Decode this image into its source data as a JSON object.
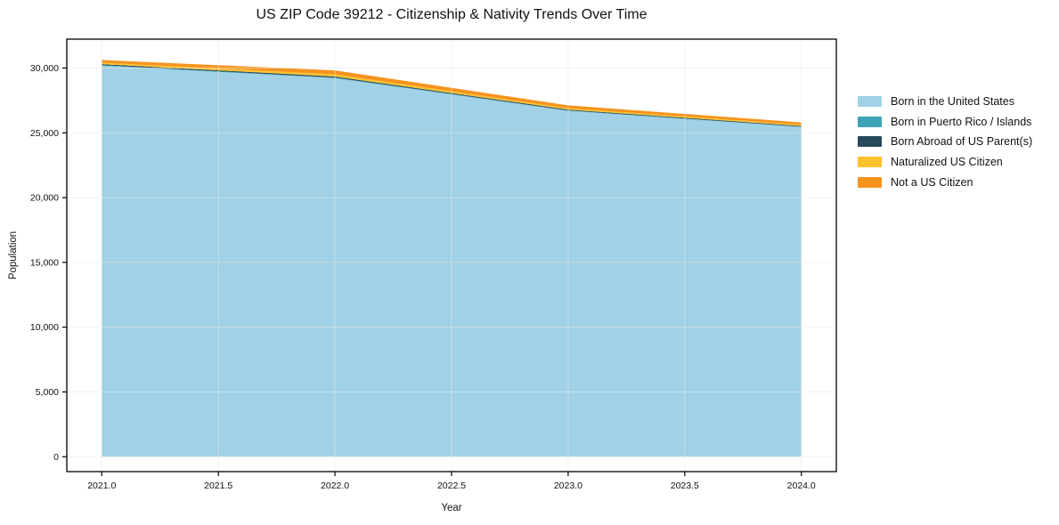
{
  "chart_data": {
    "type": "area",
    "stacked": true,
    "title": "US ZIP Code 39212 - Citizenship & Nativity Trends Over Time",
    "xlabel": "Year",
    "ylabel": "Population",
    "x": [
      2021,
      2022,
      2023,
      2024
    ],
    "series": [
      {
        "name": "Born in the United States",
        "color": "#a0d1e6",
        "values": [
          30190,
          29220,
          26700,
          25450
        ]
      },
      {
        "name": "Born in Puerto Rico / Islands",
        "color": "#3da4b8",
        "values": [
          35,
          40,
          30,
          25
        ]
      },
      {
        "name": "Born Abroad of US Parent(s)",
        "color": "#25495a",
        "values": [
          75,
          85,
          60,
          55
        ]
      },
      {
        "name": "Naturalized US Citizen",
        "color": "#fcc22d",
        "values": [
          110,
          175,
          110,
          95
        ]
      },
      {
        "name": "Not a US Citizen",
        "color": "#f6931d",
        "values": [
          210,
          300,
          220,
          175
        ]
      }
    ],
    "stack_totals": [
      30620,
      29820,
      27120,
      25800
    ],
    "xlim": [
      2020.85,
      2024.15
    ],
    "ylim": [
      -1150,
      32230
    ],
    "xticks": [
      2021.0,
      2021.5,
      2022.0,
      2022.5,
      2023.0,
      2023.5,
      2024.0
    ],
    "xtick_labels": [
      "2021.0",
      "2021.5",
      "2022.0",
      "2022.5",
      "2023.0",
      "2023.5",
      "2024.0"
    ],
    "yticks": [
      0,
      5000,
      10000,
      15000,
      20000,
      25000,
      30000
    ],
    "ytick_labels": [
      "0",
      "5,000",
      "10,000",
      "15,000",
      "20,000",
      "25,000",
      "30,000"
    ],
    "grid": true,
    "legend_position": "right-outside",
    "spine_color": "#000000",
    "grid_color": "#e8e8e8",
    "background_color": "#ffffff"
  }
}
